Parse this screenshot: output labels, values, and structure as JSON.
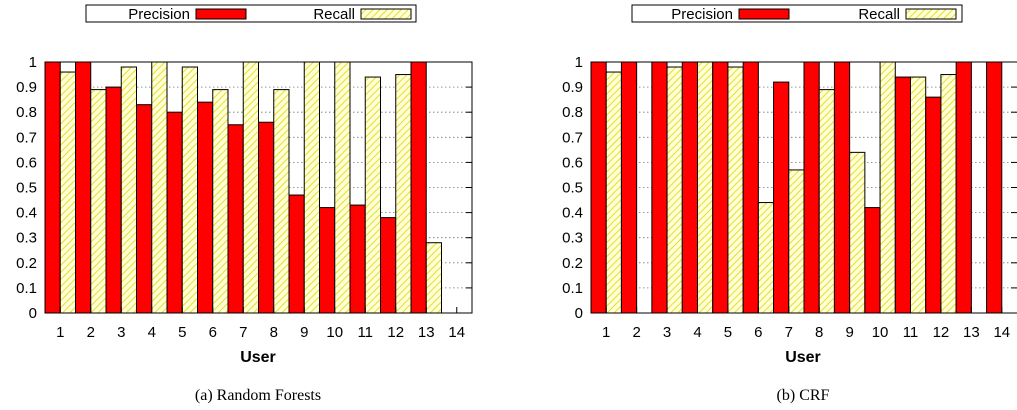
{
  "chart_data": [
    {
      "type": "bar",
      "caption": "(a) Random Forests",
      "xlabel": "User",
      "ylabel": "",
      "ylim": [
        0,
        1
      ],
      "yticks": [
        "0",
        "0.1",
        "0.2",
        "0.3",
        "0.4",
        "0.5",
        "0.6",
        "0.7",
        "0.8",
        "0.9",
        "1"
      ],
      "categories": [
        "1",
        "2",
        "3",
        "4",
        "5",
        "6",
        "7",
        "8",
        "9",
        "10",
        "11",
        "12",
        "13",
        "14"
      ],
      "grid": "horizontal",
      "legend_position": "top",
      "series": [
        {
          "name": "Precision",
          "color": "#ff0000",
          "values": [
            1.0,
            1.0,
            0.9,
            0.83,
            0.8,
            0.84,
            0.75,
            0.76,
            0.47,
            0.42,
            0.43,
            0.38,
            1.0,
            null
          ]
        },
        {
          "name": "Recall",
          "color": "#ffff99",
          "values": [
            0.96,
            0.89,
            0.98,
            1.0,
            0.98,
            0.89,
            1.0,
            0.89,
            1.0,
            1.0,
            0.94,
            0.95,
            0.28,
            null
          ]
        }
      ]
    },
    {
      "type": "bar",
      "caption": "(b) CRF",
      "xlabel": "User",
      "ylabel": "",
      "ylim": [
        0,
        1
      ],
      "yticks": [
        "0",
        "0.1",
        "0.2",
        "0.3",
        "0.4",
        "0.5",
        "0.6",
        "0.7",
        "0.8",
        "0.9",
        "1"
      ],
      "categories": [
        "1",
        "2",
        "3",
        "4",
        "5",
        "6",
        "7",
        "8",
        "9",
        "10",
        "11",
        "12",
        "13",
        "14"
      ],
      "grid": "horizontal",
      "legend_position": "top",
      "series": [
        {
          "name": "Precision",
          "color": "#ff0000",
          "values": [
            1.0,
            1.0,
            1.0,
            1.0,
            1.0,
            1.0,
            0.92,
            1.0,
            1.0,
            0.42,
            0.94,
            0.86,
            1.0,
            1.0
          ]
        },
        {
          "name": "Recall",
          "color": "#ffff99",
          "values": [
            0.96,
            null,
            0.98,
            1.0,
            0.98,
            0.44,
            0.57,
            0.89,
            0.64,
            1.0,
            0.94,
            0.95,
            null,
            null
          ]
        }
      ]
    }
  ]
}
